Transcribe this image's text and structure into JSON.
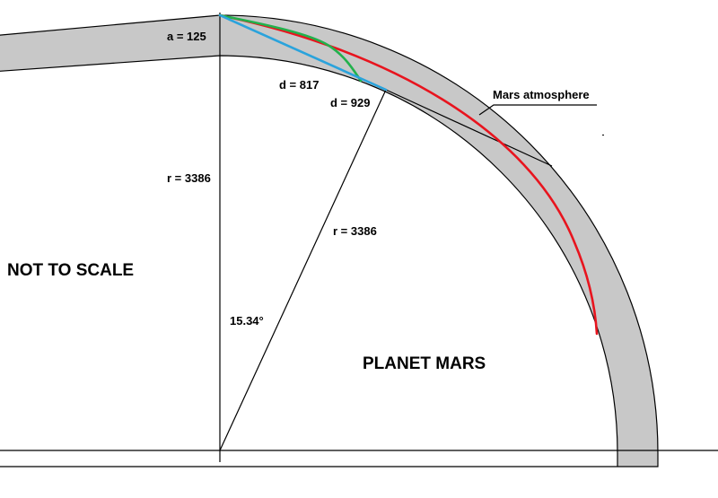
{
  "labels": {
    "atmosphere_height": "a = 125",
    "radius_vertical": "r = 3386",
    "radius_slanted": "r = 3386",
    "angle": "15.34°",
    "green_distance": "d = 817",
    "blue_distance": "d = 929",
    "atmosphere": "Mars atmosphere",
    "not_to_scale": "NOT TO SCALE",
    "planet": "PLANET MARS"
  },
  "colors": {
    "atmosphere_band": "#c8c8c8",
    "outline": "#000000",
    "red_path": "#e8141e",
    "green_path": "#22b14c",
    "blue_path": "#2aa3dc",
    "green_text": "#22b14c",
    "blue_text": "#2aa3dc"
  }
}
